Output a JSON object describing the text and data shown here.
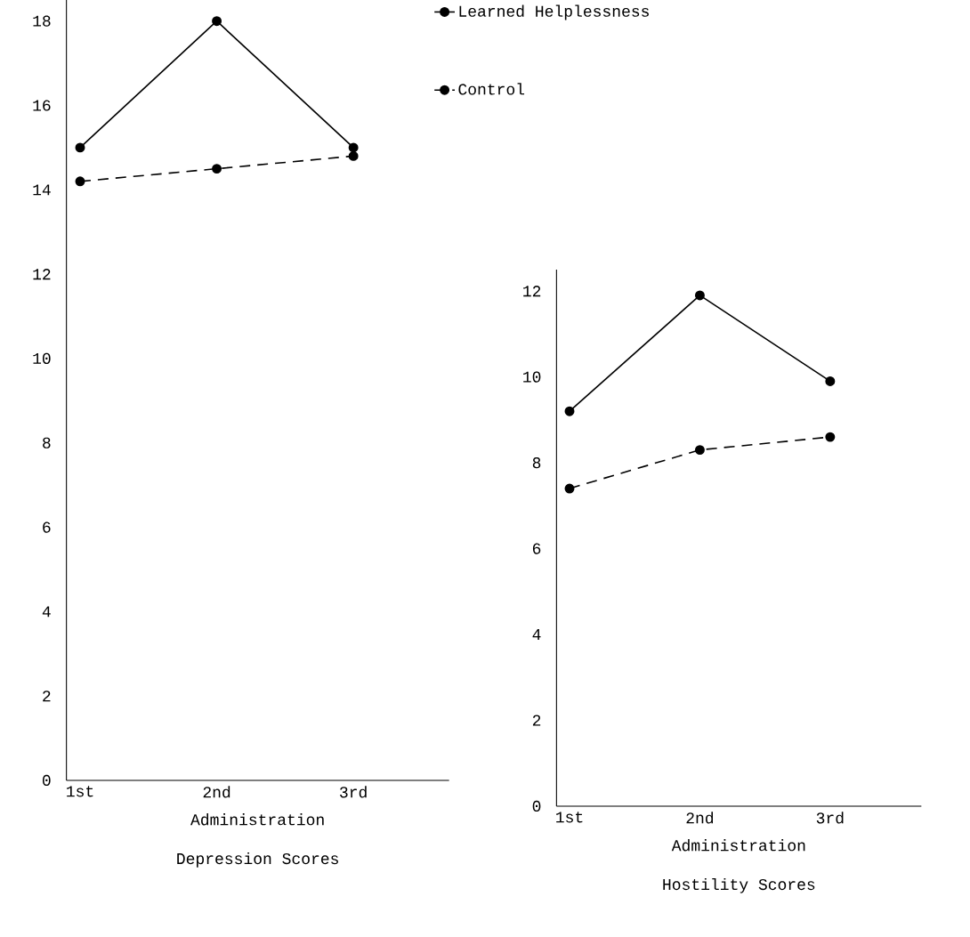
{
  "chart_data": [
    {
      "type": "line",
      "title": "Depression Scores",
      "xlabel": "Administration",
      "categories": [
        "1st",
        "2nd",
        "3rd"
      ],
      "ylim": [
        0,
        18.5
      ],
      "yticks": [
        0,
        2,
        4,
        6,
        8,
        10,
        12,
        14,
        16,
        18
      ],
      "legend": "top right",
      "marker": "circle",
      "series": [
        {
          "name": "Learned Helplessness",
          "color": "#000000",
          "line_style": "solid",
          "values": [
            15.0,
            18.0,
            15.0
          ]
        },
        {
          "name": "Control",
          "color": "#000000",
          "line_style": "dashed",
          "values": [
            14.2,
            14.5,
            14.8
          ]
        }
      ]
    },
    {
      "type": "line",
      "title": "Hostility Scores",
      "xlabel": "Administration",
      "categories": [
        "1st",
        "2nd",
        "3rd"
      ],
      "ylim": [
        0,
        12.5
      ],
      "yticks": [
        0,
        2,
        4,
        6,
        8,
        10,
        12
      ],
      "marker": "circle",
      "series": [
        {
          "color": "#000000",
          "line_style": "solid",
          "values": [
            9.2,
            11.9,
            9.9
          ]
        },
        {
          "color": "#000000",
          "line_style": "dashed",
          "values": [
            7.4,
            8.3,
            8.6
          ]
        }
      ]
    }
  ]
}
